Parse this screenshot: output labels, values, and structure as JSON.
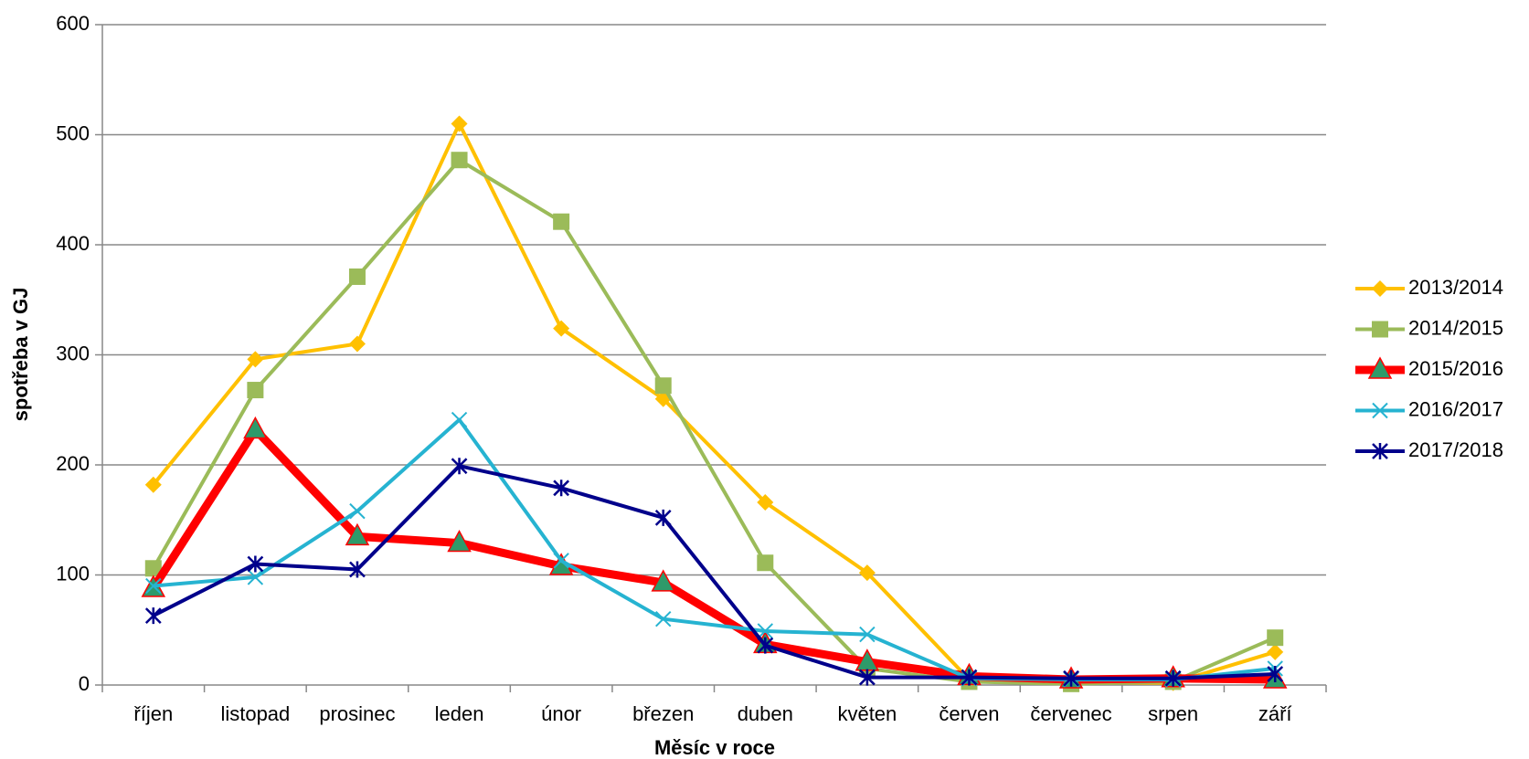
{
  "chart_data": {
    "type": "line",
    "x_label": "Měsíc v roce",
    "y_label": "spotřeba v GJ",
    "categories": [
      "říjen",
      "listopad",
      "prosinec",
      "leden",
      "únor",
      "březen",
      "duben",
      "květen",
      "červen",
      "červenec",
      "srpen",
      "září"
    ],
    "series": [
      {
        "name": "2013/2014",
        "color": "#ffc000",
        "marker": "diamond",
        "line_width": 4,
        "values": [
          182,
          296,
          310,
          510,
          324,
          260,
          166,
          102,
          5,
          2,
          2,
          30
        ]
      },
      {
        "name": "2014/2015",
        "color": "#9bbb59",
        "marker": "square",
        "line_width": 4,
        "values": [
          106,
          268,
          371,
          477,
          421,
          272,
          111,
          15,
          3,
          1,
          3,
          43
        ]
      },
      {
        "name": "2015/2016",
        "color": "#ff0000",
        "marker": "triangle",
        "marker_color": "#2e9a6a",
        "line_width": 9,
        "values": [
          88,
          232,
          135,
          129,
          108,
          93,
          37,
          21,
          8,
          5,
          6,
          5
        ]
      },
      {
        "name": "2016/2017",
        "color": "#26b3d1",
        "marker": "x",
        "line_width": 4,
        "values": [
          90,
          98,
          158,
          241,
          113,
          60,
          49,
          46,
          6,
          5,
          5,
          15
        ]
      },
      {
        "name": "2017/2018",
        "color": "#00008b",
        "marker": "star",
        "line_width": 4,
        "values": [
          63,
          110,
          105,
          199,
          179,
          152,
          36,
          7,
          7,
          6,
          6,
          10
        ]
      }
    ],
    "ylim": [
      0,
      600
    ],
    "yticks": [
      0,
      100,
      200,
      300,
      400,
      500,
      600
    ],
    "grid": true,
    "legend": "right"
  }
}
